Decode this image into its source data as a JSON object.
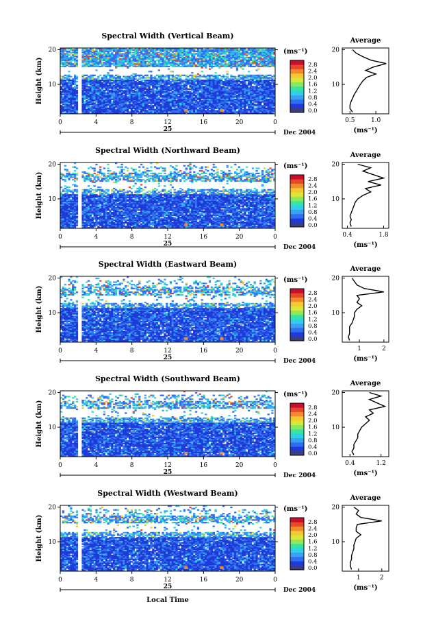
{
  "figure": {
    "date_label": "Dec 2004",
    "day_label": "25",
    "x_axis_title": "Local Time",
    "cbar_unit": "(ms⁻¹)",
    "avg_title": "Average",
    "avg_unit": "(ms⁻¹)",
    "height_label": "Height (km)"
  },
  "chart_data": [
    {
      "type": "heatmap",
      "title": "Spectral Width (Vertical Beam)",
      "xlabel": "Local Time",
      "ylabel": "Height (km)",
      "xlim": [
        0,
        24
      ],
      "ylim": [
        1.5,
        20.5
      ],
      "x_ticks": [
        "0",
        "4",
        "8",
        "12",
        "16",
        "20",
        "0"
      ],
      "y_ticks": [
        "10",
        "20"
      ],
      "colorbar": {
        "label": "(ms⁻¹)",
        "ticks": [
          "0.0",
          "0.4",
          "0.8",
          "1.2",
          "1.6",
          "2.0",
          "2.4",
          "2.8"
        ]
      },
      "colors": [
        "#3b3f7a",
        "#1f3ad9",
        "#2f6ef0",
        "#39a0f2",
        "#2fd0e8",
        "#38e4a4",
        "#8ee85b",
        "#d8e73a",
        "#f5c832",
        "#f58a2c",
        "#e84827",
        "#c8102e"
      ],
      "data_gap_hours": [
        2.0,
        2.5
      ],
      "average_profile": {
        "title": "Average",
        "xlabel": "(ms⁻¹)",
        "x_ticks": [
          "0.5",
          "1.0"
        ],
        "xlim": [
          0.35,
          1.25
        ],
        "height_km": [
          2,
          3,
          4,
          5,
          6,
          7,
          8,
          9,
          10,
          11,
          12,
          13,
          14,
          15,
          16,
          17,
          18,
          19,
          20
        ],
        "spectral_width": [
          0.55,
          0.5,
          0.5,
          0.52,
          0.55,
          0.58,
          0.62,
          0.66,
          0.7,
          0.75,
          0.82,
          1.0,
          0.8,
          0.95,
          1.2,
          0.9,
          0.75,
          0.62,
          0.55
        ]
      }
    },
    {
      "type": "heatmap",
      "title": "Spectral Width (Northward Beam)",
      "xlabel": "Local Time",
      "ylabel": "Height (km)",
      "xlim": [
        0,
        24
      ],
      "ylim": [
        1.5,
        20.5
      ],
      "x_ticks": [
        "0",
        "4",
        "8",
        "12",
        "16",
        "20",
        "0"
      ],
      "y_ticks": [
        "10",
        "20"
      ],
      "colorbar": {
        "label": "(ms⁻¹)",
        "ticks": [
          "0.0",
          "0.4",
          "0.8",
          "1.2",
          "1.6",
          "2.0",
          "2.4",
          "2.8"
        ]
      },
      "colors": [
        "#3b3f7a",
        "#1f3ad9",
        "#2f6ef0",
        "#39a0f2",
        "#2fd0e8",
        "#38e4a4",
        "#8ee85b",
        "#d8e73a",
        "#f5c832",
        "#f58a2c",
        "#e84827",
        "#c8102e"
      ],
      "data_gap_hours": [
        2.0,
        2.5
      ],
      "average_profile": {
        "title": "Average",
        "xlabel": "(ms⁻¹)",
        "x_ticks": [
          "0.4",
          "1.8"
        ],
        "xlim": [
          0.2,
          2.0
        ],
        "height_km": [
          2,
          3,
          4,
          5,
          6,
          7,
          8,
          9,
          10,
          11,
          12,
          13,
          14,
          15,
          16,
          17,
          18,
          19,
          20
        ],
        "spectral_width": [
          0.55,
          0.5,
          0.55,
          0.5,
          0.55,
          0.6,
          0.65,
          0.7,
          0.8,
          1.0,
          1.3,
          1.1,
          1.7,
          1.2,
          1.8,
          1.4,
          1.0,
          1.3,
          0.8
        ]
      }
    },
    {
      "type": "heatmap",
      "title": "Spectral Width (Eastward Beam)",
      "xlabel": "Local Time",
      "ylabel": "Height (km)",
      "xlim": [
        0,
        24
      ],
      "ylim": [
        1.5,
        20.5
      ],
      "x_ticks": [
        "0",
        "4",
        "8",
        "12",
        "16",
        "20",
        "0"
      ],
      "y_ticks": [
        "10",
        "20"
      ],
      "colorbar": {
        "label": "(ms⁻¹)",
        "ticks": [
          "0.0",
          "0.4",
          "0.8",
          "1.2",
          "1.6",
          "2.0",
          "2.4",
          "2.8"
        ]
      },
      "colors": [
        "#3b3f7a",
        "#1f3ad9",
        "#2f6ef0",
        "#39a0f2",
        "#2fd0e8",
        "#38e4a4",
        "#8ee85b",
        "#d8e73a",
        "#f5c832",
        "#f58a2c",
        "#e84827",
        "#c8102e"
      ],
      "data_gap_hours": [
        2.0,
        2.5
      ],
      "average_profile": {
        "title": "Average",
        "xlabel": "(ms⁻¹)",
        "x_ticks": [
          "1",
          "2"
        ],
        "xlim": [
          0.3,
          2.2
        ],
        "height_km": [
          2,
          3,
          4,
          5,
          6,
          7,
          8,
          9,
          10,
          11,
          12,
          13,
          14,
          15,
          16,
          17,
          18,
          19,
          20
        ],
        "spectral_width": [
          0.6,
          0.55,
          0.6,
          0.6,
          0.6,
          0.7,
          0.75,
          0.8,
          0.8,
          0.9,
          1.1,
          0.9,
          1.0,
          0.9,
          2.0,
          1.2,
          0.9,
          0.8,
          0.7
        ]
      }
    },
    {
      "type": "heatmap",
      "title": "Spectral Width (Southward Beam)",
      "xlabel": "Local Time",
      "ylabel": "Height (km)",
      "xlim": [
        0,
        24
      ],
      "ylim": [
        1.5,
        20.5
      ],
      "x_ticks": [
        "0",
        "4",
        "8",
        "12",
        "16",
        "20",
        "0"
      ],
      "y_ticks": [
        "10",
        "20"
      ],
      "colorbar": {
        "label": "(ms⁻¹)",
        "ticks": [
          "0.0",
          "0.4",
          "0.8",
          "1.2",
          "1.6",
          "2.0",
          "2.4",
          "2.8"
        ]
      },
      "colors": [
        "#3b3f7a",
        "#1f3ad9",
        "#2f6ef0",
        "#39a0f2",
        "#2fd0e8",
        "#38e4a4",
        "#8ee85b",
        "#d8e73a",
        "#f5c832",
        "#f58a2c",
        "#e84827",
        "#c8102e"
      ],
      "data_gap_hours": [
        2.0,
        2.5
      ],
      "average_profile": {
        "title": "Average",
        "xlabel": "(ms⁻¹)",
        "x_ticks": [
          "0.4",
          "1.2"
        ],
        "xlim": [
          0.2,
          1.4
        ],
        "height_km": [
          2,
          3,
          4,
          5,
          6,
          7,
          8,
          9,
          10,
          11,
          12,
          13,
          14,
          15,
          16,
          17,
          18,
          19,
          20
        ],
        "spectral_width": [
          0.5,
          0.45,
          0.5,
          0.5,
          0.55,
          0.6,
          0.6,
          0.65,
          0.7,
          0.8,
          0.9,
          0.8,
          1.0,
          0.9,
          1.3,
          1.1,
          0.9,
          1.2,
          0.9
        ]
      }
    },
    {
      "type": "heatmap",
      "title": "Spectral Width (Westward Beam)",
      "xlabel": "Local Time",
      "ylabel": "Height (km)",
      "xlim": [
        0,
        24
      ],
      "ylim": [
        1.5,
        20.5
      ],
      "x_ticks": [
        "0",
        "4",
        "8",
        "12",
        "16",
        "20",
        "0"
      ],
      "y_ticks": [
        "10",
        "20"
      ],
      "colorbar": {
        "label": "(ms⁻¹)",
        "ticks": [
          "0.0",
          "0.4",
          "0.8",
          "1.2",
          "1.6",
          "2.0",
          "2.4",
          "2.8"
        ]
      },
      "colors": [
        "#3b3f7a",
        "#1f3ad9",
        "#2f6ef0",
        "#39a0f2",
        "#2fd0e8",
        "#38e4a4",
        "#8ee85b",
        "#d8e73a",
        "#f5c832",
        "#f58a2c",
        "#e84827",
        "#c8102e"
      ],
      "data_gap_hours": [
        2.0,
        2.5
      ],
      "average_profile": {
        "title": "Average",
        "xlabel": "(ms⁻¹)",
        "x_ticks": [
          "1",
          "2"
        ],
        "xlim": [
          0.3,
          2.3
        ],
        "height_km": [
          2,
          3,
          4,
          5,
          6,
          7,
          8,
          9,
          10,
          11,
          12,
          13,
          14,
          15,
          16,
          17,
          18,
          19,
          20
        ],
        "spectral_width": [
          0.7,
          0.65,
          0.65,
          0.7,
          0.7,
          0.75,
          0.8,
          0.8,
          0.85,
          0.9,
          1.1,
          0.9,
          0.9,
          0.95,
          2.0,
          1.1,
          0.9,
          1.0,
          0.8
        ]
      }
    }
  ]
}
